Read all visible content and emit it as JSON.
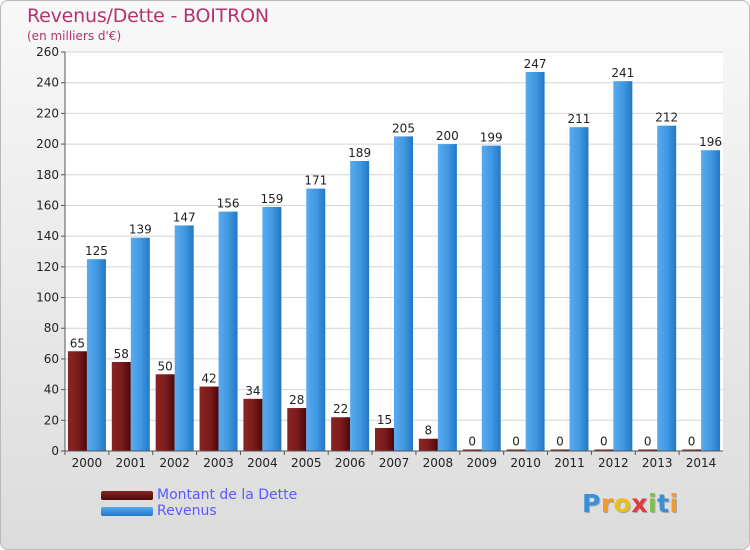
{
  "title": "Revenus/Dette - BOITRON",
  "subtitle": "(en milliers d'€)",
  "colors": {
    "debt": "#7a1b1b",
    "revenue": "#3f97e0",
    "title": "#b23370",
    "legend_text": "#5a5aff"
  },
  "chart_data": {
    "type": "bar",
    "categories": [
      "2000",
      "2001",
      "2002",
      "2003",
      "2004",
      "2005",
      "2006",
      "2007",
      "2008",
      "2009",
      "2010",
      "2011",
      "2012",
      "2013",
      "2014"
    ],
    "series": [
      {
        "name": "Montant de la Dette",
        "values": [
          65,
          58,
          50,
          42,
          34,
          28,
          22,
          15,
          8,
          0,
          0,
          0,
          0,
          0,
          0
        ]
      },
      {
        "name": "Revenus",
        "values": [
          125,
          139,
          147,
          156,
          159,
          171,
          189,
          205,
          200,
          199,
          247,
          211,
          241,
          212,
          196
        ]
      }
    ],
    "ylim": [
      0,
      260
    ],
    "yticks": [
      0,
      20,
      40,
      60,
      80,
      100,
      120,
      140,
      160,
      180,
      200,
      220,
      240,
      260
    ],
    "grid": true
  },
  "legend": [
    {
      "label": "Montant de la Dette"
    },
    {
      "label": "Revenus"
    }
  ],
  "logo": {
    "letters": [
      {
        "ch": "P",
        "color": "#3a8fd8"
      },
      {
        "ch": "r",
        "color": "#f29a2e"
      },
      {
        "ch": "o",
        "color": "#e8c21a"
      },
      {
        "ch": "x",
        "color": "#e03a3a"
      },
      {
        "ch": "i",
        "color": "#7cc242"
      },
      {
        "ch": "t",
        "color": "#3a8fd8"
      },
      {
        "ch": "i",
        "color": "#f29a2e"
      }
    ]
  }
}
